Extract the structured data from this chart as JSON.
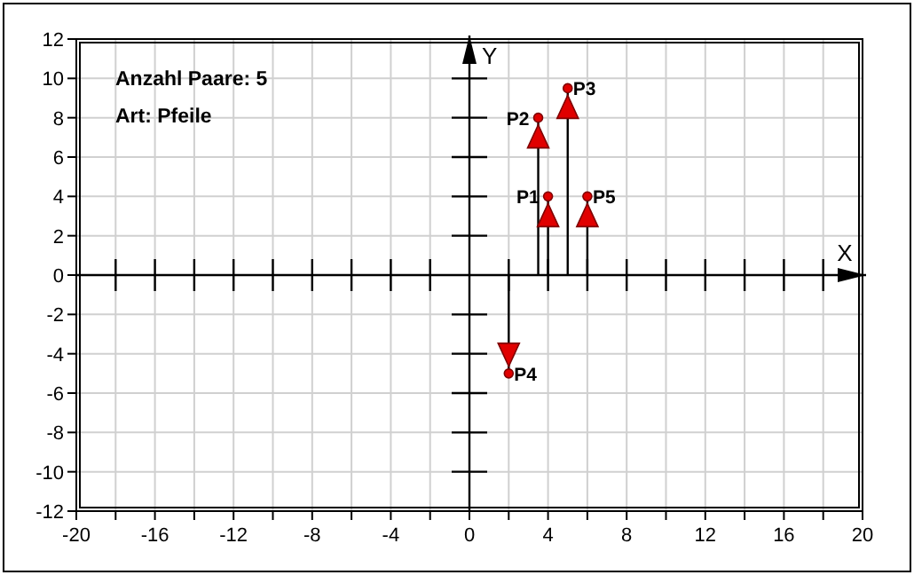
{
  "chart_data": {
    "type": "lollipop",
    "xlabel": "X",
    "ylabel": "Y",
    "x": [
      4,
      3.5,
      5,
      2,
      6
    ],
    "series": [
      {
        "color": "#e00000",
        "values": [
          4,
          8,
          9.5,
          -5,
          4
        ]
      }
    ],
    "xlim": [
      -20,
      20
    ],
    "ylim": [
      -12,
      12
    ],
    "xticks": [
      -20,
      {
        "value": -18,
        "label": null
      },
      -16,
      {
        "value": -14,
        "label": null
      },
      -12,
      {
        "value": -10,
        "label": null
      },
      -8,
      {
        "value": -6,
        "label": null
      },
      -4,
      {
        "value": -2,
        "label": null
      },
      0,
      {
        "value": 2,
        "label": null
      },
      4,
      {
        "value": 6,
        "label": null
      },
      8,
      {
        "value": 10,
        "label": null
      },
      12,
      {
        "value": 14,
        "label": null
      },
      16,
      {
        "value": 18,
        "label": null
      },
      20
    ],
    "yticks": [
      -12,
      -10,
      -8,
      -6,
      -4,
      -2,
      0,
      2,
      4,
      6,
      8,
      10,
      12
    ],
    "grid": true,
    "marker": "circle",
    "annotations": [
      "Anzahl Paare: 5",
      "Art: Pfeile",
      {
        "text": "P1",
        "x": 4,
        "y": 4
      },
      {
        "text": "P2",
        "x": 3.5,
        "y": 8
      },
      {
        "text": "P3",
        "x": 5,
        "y": 9.5
      },
      {
        "text": "P4",
        "x": 2,
        "y": -5
      },
      {
        "text": "P5",
        "x": 6,
        "y": 4
      }
    ]
  }
}
